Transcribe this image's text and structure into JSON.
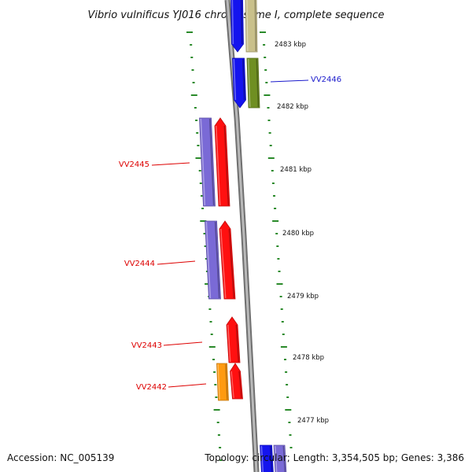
{
  "title": "Vibrio vulnificus YJ016 chromosome I, complete sequence",
  "accession_text": "Accession: NC_005139",
  "topology_text": "Topology: circular; Length: 3,354,505 bp; Genes: 3,386",
  "colors": {
    "backbone": "#8a8a8a",
    "tick": "#2a8a2a",
    "label_red": "#dd0000",
    "label_blue": "#1a1acc",
    "gene_red": "#ff1010",
    "gene_blue": "#1414ee",
    "gene_violet": "#7a6ad6",
    "gene_olive": "#6f8f22",
    "gene_khaki": "#c9c08a",
    "gene_orange": "#ff9a10"
  },
  "scale_labels": [
    {
      "id": "2483",
      "text": "2483 kbp"
    },
    {
      "id": "2482",
      "text": "2482 kbp"
    },
    {
      "id": "2481",
      "text": "2481 kbp"
    },
    {
      "id": "2480",
      "text": "2480 kbp"
    },
    {
      "id": "2479",
      "text": "2479 kbp"
    },
    {
      "id": "2478",
      "text": "2478 kbp"
    },
    {
      "id": "2477",
      "text": "2477 kbp"
    }
  ],
  "gene_labels": [
    {
      "id": "vv2446",
      "text": "VV2446",
      "color": "blue"
    },
    {
      "id": "vv2445",
      "text": "VV2445",
      "color": "red"
    },
    {
      "id": "vv2444",
      "text": "VV2444",
      "color": "red"
    },
    {
      "id": "vv2443",
      "text": "VV2443",
      "color": "red"
    },
    {
      "id": "vv2442",
      "text": "VV2442",
      "color": "red"
    }
  ]
}
